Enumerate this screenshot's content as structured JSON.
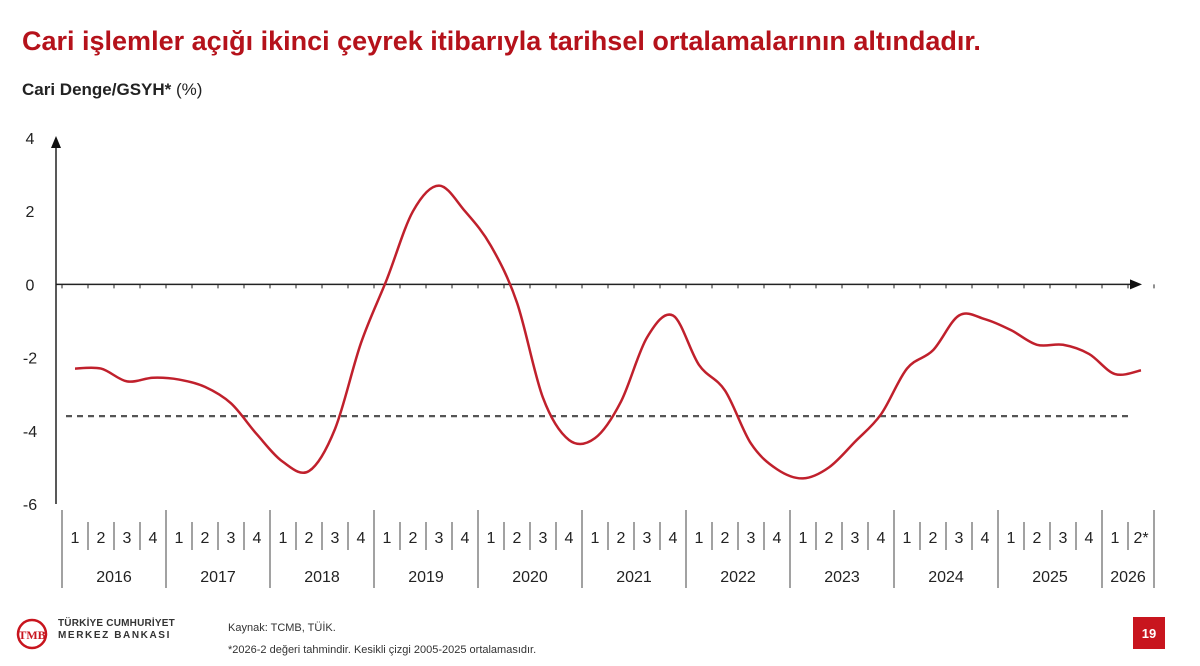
{
  "header": {
    "title": "Cari işlemler açığı ikinci çeyrek itibarıyla tarihsel ortalamalarının altındadır.",
    "subtitle_bold": "Cari Denge/GSYH*",
    "subtitle_unit": "(%)"
  },
  "footer": {
    "source": "Kaynak: TCMB, TÜİK.",
    "note": "*2026-2 değeri tahmindir. Kesikli çizgi 2005-2025 ortalamasıdır.",
    "page_number": "19",
    "logo_line1": "TÜRKİYE CUMHURİYET",
    "logo_line2": "MERKEZ BANKASI",
    "logo_mark": "TCMB"
  },
  "chart_data": {
    "type": "line",
    "title": "Cari işlemler açığı ikinci çeyrek itibarıyla tarihsel ortalamalarının altındadır.",
    "ylabel": "Cari Denge/GSYH* (%)",
    "ylim": [
      -6,
      4
    ],
    "yticks": [
      "4",
      "2",
      "0",
      "-2",
      "-4",
      "-6"
    ],
    "ytick_values": [
      4,
      2,
      0,
      -2,
      -4,
      -6
    ],
    "years": [
      "2016",
      "2017",
      "2018",
      "2019",
      "2020",
      "2021",
      "2022",
      "2023",
      "2024",
      "2025",
      "2026"
    ],
    "quarter_labels": [
      "1",
      "2",
      "3",
      "4",
      "1",
      "2",
      "3",
      "4",
      "1",
      "2",
      "3",
      "4",
      "1",
      "2",
      "3",
      "4",
      "1",
      "2",
      "3",
      "4",
      "1",
      "2",
      "3",
      "4",
      "1",
      "2",
      "3",
      "4",
      "1",
      "2",
      "3",
      "4",
      "1",
      "2",
      "3",
      "4",
      "1",
      "2",
      "3",
      "4",
      "1",
      "2*"
    ],
    "series": [
      {
        "color": "#c0202c",
        "values": [
          -2.3,
          -2.3,
          -2.65,
          -2.55,
          -2.6,
          -2.8,
          -3.25,
          -4.1,
          -4.85,
          -5.1,
          -3.95,
          -1.6,
          0.15,
          2.0,
          2.7,
          2.0,
          1.05,
          -0.5,
          -3.1,
          -4.25,
          -4.2,
          -3.2,
          -1.45,
          -0.85,
          -2.2,
          -2.9,
          -4.35,
          -5.05,
          -5.3,
          -5.0,
          -4.3,
          -3.55,
          -2.3,
          -1.8,
          -0.85,
          -0.95,
          -1.25,
          -1.65,
          -1.65,
          -1.9,
          -2.45,
          -2.35
        ]
      }
    ],
    "reference_line": {
      "value": -3.6,
      "style": "dashed",
      "color": "#555555"
    },
    "grid": false
  }
}
